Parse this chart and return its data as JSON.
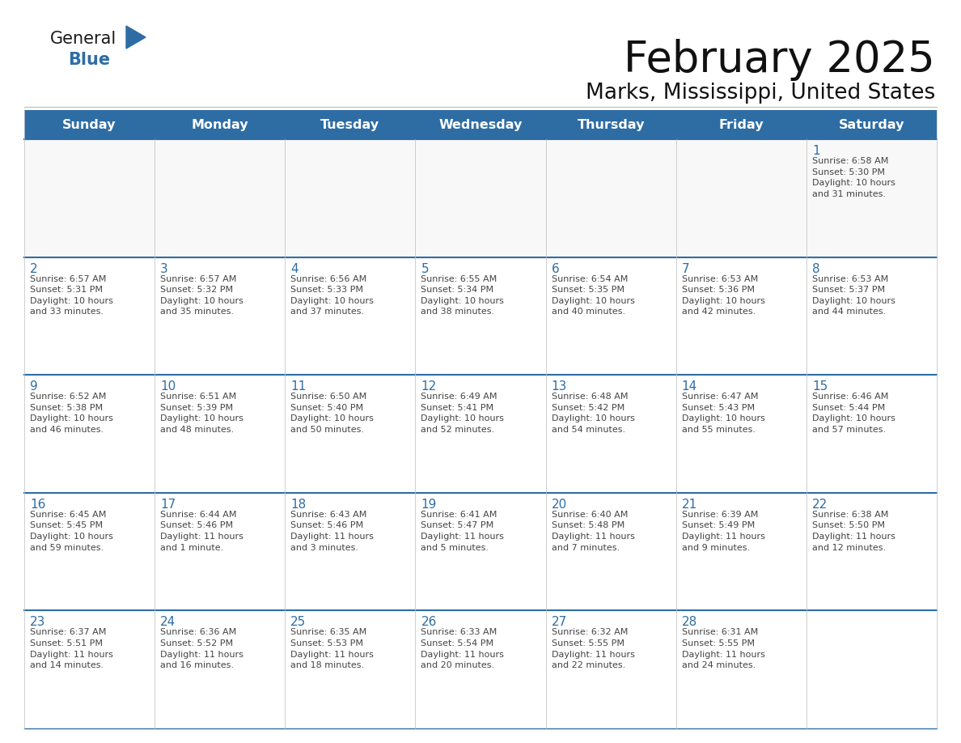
{
  "title": "February 2025",
  "subtitle": "Marks, Mississippi, United States",
  "header_color": "#2E6DA4",
  "header_text_color": "#FFFFFF",
  "cell_bg_color": "#FFFFFF",
  "row_border_color": "#2E6DA4",
  "cell_border_color": "#CCCCCC",
  "day_num_color": "#2E6DA4",
  "text_color": "#444444",
  "logo_black": "#1a1a1a",
  "logo_blue": "#2E6DA4",
  "days_of_week": [
    "Sunday",
    "Monday",
    "Tuesday",
    "Wednesday",
    "Thursday",
    "Friday",
    "Saturday"
  ],
  "weeks": [
    [
      {
        "day": "",
        "info": ""
      },
      {
        "day": "",
        "info": ""
      },
      {
        "day": "",
        "info": ""
      },
      {
        "day": "",
        "info": ""
      },
      {
        "day": "",
        "info": ""
      },
      {
        "day": "",
        "info": ""
      },
      {
        "day": "1",
        "info": "Sunrise: 6:58 AM\nSunset: 5:30 PM\nDaylight: 10 hours\nand 31 minutes."
      }
    ],
    [
      {
        "day": "2",
        "info": "Sunrise: 6:57 AM\nSunset: 5:31 PM\nDaylight: 10 hours\nand 33 minutes."
      },
      {
        "day": "3",
        "info": "Sunrise: 6:57 AM\nSunset: 5:32 PM\nDaylight: 10 hours\nand 35 minutes."
      },
      {
        "day": "4",
        "info": "Sunrise: 6:56 AM\nSunset: 5:33 PM\nDaylight: 10 hours\nand 37 minutes."
      },
      {
        "day": "5",
        "info": "Sunrise: 6:55 AM\nSunset: 5:34 PM\nDaylight: 10 hours\nand 38 minutes."
      },
      {
        "day": "6",
        "info": "Sunrise: 6:54 AM\nSunset: 5:35 PM\nDaylight: 10 hours\nand 40 minutes."
      },
      {
        "day": "7",
        "info": "Sunrise: 6:53 AM\nSunset: 5:36 PM\nDaylight: 10 hours\nand 42 minutes."
      },
      {
        "day": "8",
        "info": "Sunrise: 6:53 AM\nSunset: 5:37 PM\nDaylight: 10 hours\nand 44 minutes."
      }
    ],
    [
      {
        "day": "9",
        "info": "Sunrise: 6:52 AM\nSunset: 5:38 PM\nDaylight: 10 hours\nand 46 minutes."
      },
      {
        "day": "10",
        "info": "Sunrise: 6:51 AM\nSunset: 5:39 PM\nDaylight: 10 hours\nand 48 minutes."
      },
      {
        "day": "11",
        "info": "Sunrise: 6:50 AM\nSunset: 5:40 PM\nDaylight: 10 hours\nand 50 minutes."
      },
      {
        "day": "12",
        "info": "Sunrise: 6:49 AM\nSunset: 5:41 PM\nDaylight: 10 hours\nand 52 minutes."
      },
      {
        "day": "13",
        "info": "Sunrise: 6:48 AM\nSunset: 5:42 PM\nDaylight: 10 hours\nand 54 minutes."
      },
      {
        "day": "14",
        "info": "Sunrise: 6:47 AM\nSunset: 5:43 PM\nDaylight: 10 hours\nand 55 minutes."
      },
      {
        "day": "15",
        "info": "Sunrise: 6:46 AM\nSunset: 5:44 PM\nDaylight: 10 hours\nand 57 minutes."
      }
    ],
    [
      {
        "day": "16",
        "info": "Sunrise: 6:45 AM\nSunset: 5:45 PM\nDaylight: 10 hours\nand 59 minutes."
      },
      {
        "day": "17",
        "info": "Sunrise: 6:44 AM\nSunset: 5:46 PM\nDaylight: 11 hours\nand 1 minute."
      },
      {
        "day": "18",
        "info": "Sunrise: 6:43 AM\nSunset: 5:46 PM\nDaylight: 11 hours\nand 3 minutes."
      },
      {
        "day": "19",
        "info": "Sunrise: 6:41 AM\nSunset: 5:47 PM\nDaylight: 11 hours\nand 5 minutes."
      },
      {
        "day": "20",
        "info": "Sunrise: 6:40 AM\nSunset: 5:48 PM\nDaylight: 11 hours\nand 7 minutes."
      },
      {
        "day": "21",
        "info": "Sunrise: 6:39 AM\nSunset: 5:49 PM\nDaylight: 11 hours\nand 9 minutes."
      },
      {
        "day": "22",
        "info": "Sunrise: 6:38 AM\nSunset: 5:50 PM\nDaylight: 11 hours\nand 12 minutes."
      }
    ],
    [
      {
        "day": "23",
        "info": "Sunrise: 6:37 AM\nSunset: 5:51 PM\nDaylight: 11 hours\nand 14 minutes."
      },
      {
        "day": "24",
        "info": "Sunrise: 6:36 AM\nSunset: 5:52 PM\nDaylight: 11 hours\nand 16 minutes."
      },
      {
        "day": "25",
        "info": "Sunrise: 6:35 AM\nSunset: 5:53 PM\nDaylight: 11 hours\nand 18 minutes."
      },
      {
        "day": "26",
        "info": "Sunrise: 6:33 AM\nSunset: 5:54 PM\nDaylight: 11 hours\nand 20 minutes."
      },
      {
        "day": "27",
        "info": "Sunrise: 6:32 AM\nSunset: 5:55 PM\nDaylight: 11 hours\nand 22 minutes."
      },
      {
        "day": "28",
        "info": "Sunrise: 6:31 AM\nSunset: 5:55 PM\nDaylight: 11 hours\nand 24 minutes."
      },
      {
        "day": "",
        "info": ""
      }
    ]
  ],
  "fig_width": 11.88,
  "fig_height": 9.18,
  "dpi": 100
}
